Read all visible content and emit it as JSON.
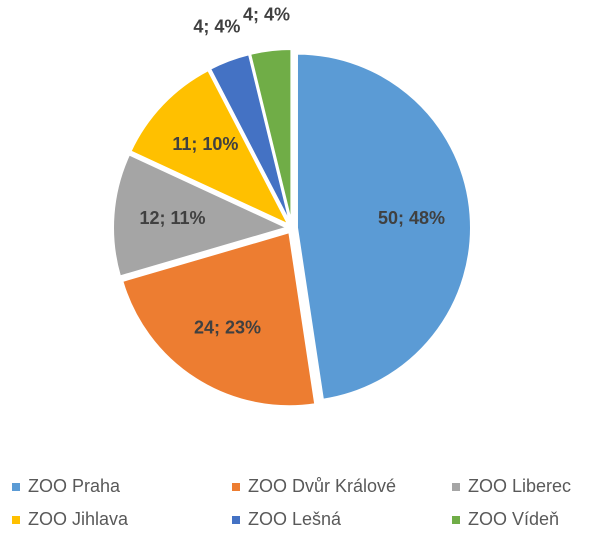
{
  "chart_data": {
    "type": "pie",
    "categories": [
      "ZOO Praha",
      "ZOO Dvůr Králové",
      "ZOO Liberec",
      "ZOO Jihlava",
      "ZOO Lešná",
      "ZOO Vídeň"
    ],
    "values": [
      50,
      24,
      12,
      11,
      4,
      4
    ],
    "value_labels": [
      "50; 48%",
      "24; 23%",
      "12; 11%",
      "11; 10%",
      "4; 4%",
      "4; 4%"
    ],
    "colors": [
      "#5b9bd5",
      "#ed7d31",
      "#a5a5a5",
      "#ffc000",
      "#4472c4",
      "#70ad47"
    ],
    "legend": "bottom"
  }
}
